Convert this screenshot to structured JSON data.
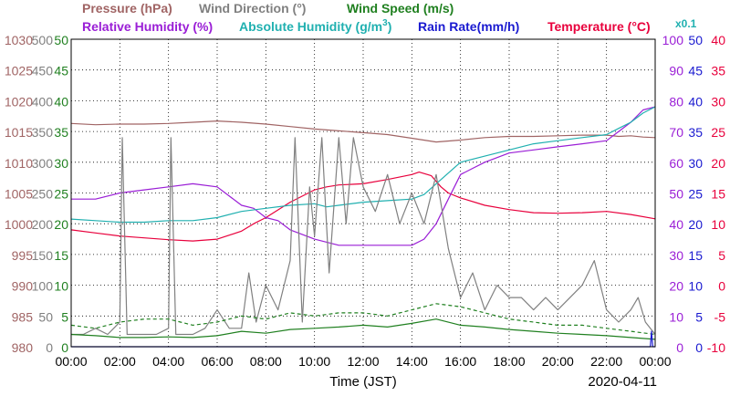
{
  "chart_data": {
    "type": "line",
    "date": "2020-04-11",
    "xlabel": "Time (JST)",
    "x_ticks": [
      "00:00",
      "02:00",
      "04:00",
      "06:00",
      "08:00",
      "10:00",
      "12:00",
      "14:00",
      "16:00",
      "18:00",
      "20:00",
      "22:00",
      "00:00"
    ],
    "xlim": [
      0,
      24
    ],
    "grid": true,
    "axes": {
      "pressure": {
        "label": "Pressure (hPa)",
        "color": "#a06464",
        "ticks": [
          "1030",
          "1025",
          "1020",
          "1015",
          "1010",
          "1005",
          "1000",
          "995",
          "990",
          "985",
          "980"
        ],
        "range": [
          980,
          1030
        ]
      },
      "wind_dir": {
        "label": "Wind Direction (°)",
        "color": "#808080",
        "ticks": [
          "500",
          "450",
          "400",
          "350",
          "300",
          "250",
          "200",
          "150",
          "100",
          "50",
          "0"
        ],
        "range": [
          0,
          500
        ]
      },
      "wind_speed": {
        "label": "Wind Speed (m/s)",
        "color": "#208020",
        "ticks": [
          "50",
          "45",
          "40",
          "35",
          "30",
          "25",
          "20",
          "15",
          "10",
          "5",
          "0"
        ],
        "range": [
          0,
          50
        ]
      },
      "rel_humidity": {
        "label": "Relative Humidity (%)",
        "color": "#9a1ed6",
        "ticks": [
          "100",
          "90",
          "80",
          "70",
          "60",
          "50",
          "40",
          "30",
          "20",
          "10",
          "0"
        ],
        "range": [
          0,
          100
        ]
      },
      "abs_humidity": {
        "label_main": "Absolute Humidity (g/m",
        "label_sup": "3",
        "label_end": ")",
        "multiplier": "x0.1",
        "color": "#20b0b0",
        "range": [
          0,
          10
        ]
      },
      "rain_rate": {
        "label": "Rain Rate(mm/h)",
        "color": "#1a1ad0",
        "ticks": [
          "50",
          "45",
          "40",
          "35",
          "30",
          "25",
          "20",
          "15",
          "10",
          "5",
          "0"
        ],
        "range": [
          0,
          50
        ]
      },
      "temperature": {
        "label": "Temperature (°C)",
        "color": "#e8003c",
        "ticks": [
          "40",
          "35",
          "30",
          "25",
          "20",
          "15",
          "10",
          "5",
          "0",
          "-5",
          "-10"
        ],
        "range": [
          -10,
          40
        ]
      }
    },
    "series": [
      {
        "name": "Pressure (hPa)",
        "axis": "pressure",
        "color": "#a06464",
        "x": [
          0,
          1,
          2,
          3,
          4,
          5,
          6,
          7,
          8,
          9,
          10,
          11,
          12,
          13,
          14,
          15,
          16,
          17,
          18,
          19,
          20,
          21,
          22,
          22.5,
          23,
          23.5,
          24
        ],
        "y": [
          1016.3,
          1016.1,
          1016.2,
          1016.2,
          1016.3,
          1016.5,
          1016.7,
          1016.5,
          1016.2,
          1015.8,
          1015.4,
          1015.1,
          1014.8,
          1014.5,
          1013.9,
          1013.3,
          1013.6,
          1014.0,
          1014.2,
          1014.2,
          1014.3,
          1014.4,
          1014.4,
          1014.2,
          1014.3,
          1014.1,
          1014.0
        ]
      },
      {
        "name": "Temperature (°C)",
        "axis": "temperature",
        "color": "#e8003c",
        "x": [
          0,
          1,
          2,
          3,
          4,
          5,
          6,
          7,
          7.5,
          8,
          9,
          10,
          10.5,
          11,
          12,
          13,
          14,
          14.3,
          14.8,
          15.2,
          15.5,
          16,
          17,
          18,
          19,
          20,
          21,
          22,
          23,
          24
        ],
        "y": [
          9.0,
          8.5,
          8.0,
          7.7,
          7.4,
          7.2,
          7.5,
          8.8,
          10.0,
          11.0,
          13.5,
          15.5,
          16.0,
          16.3,
          16.5,
          17.2,
          18.0,
          18.4,
          17.8,
          16.0,
          15.0,
          14.2,
          13.0,
          12.3,
          11.8,
          11.7,
          11.8,
          12.0,
          11.5,
          10.8
        ]
      },
      {
        "name": "Relative Humidity (%)",
        "axis": "rel_humidity",
        "color": "#9a1ed6",
        "x": [
          0,
          1,
          2,
          3,
          4,
          5,
          6,
          6.5,
          7,
          7.5,
          8,
          8.5,
          9,
          10,
          10.5,
          11,
          11.5,
          12,
          13,
          14,
          14.5,
          15,
          15.5,
          16,
          16.5,
          17,
          18,
          19,
          20,
          21,
          22,
          22.5,
          23,
          23.5,
          24
        ],
        "y": [
          48,
          48,
          50,
          51,
          52,
          53,
          52,
          49,
          46,
          45,
          42,
          41,
          38,
          35,
          34,
          33,
          33,
          33,
          33,
          33,
          35,
          40,
          48,
          56,
          58,
          60,
          63,
          64,
          65,
          66,
          67,
          70,
          73,
          77,
          78
        ]
      },
      {
        "name": "Absolute Humidity (g/m3) x0.1",
        "axis": "abs_humidity",
        "color": "#20b0b0",
        "x": [
          0,
          1,
          2,
          3,
          4,
          5,
          6,
          7,
          8,
          9,
          10,
          10.5,
          11,
          12,
          13,
          14,
          14.5,
          15,
          16,
          17,
          18,
          19,
          20,
          21,
          22,
          22.5,
          23,
          23.5,
          24
        ],
        "y": [
          4.15,
          4.1,
          4.05,
          4.05,
          4.1,
          4.1,
          4.2,
          4.4,
          4.5,
          4.6,
          4.65,
          4.55,
          4.6,
          4.7,
          4.75,
          4.8,
          4.95,
          5.3,
          6.0,
          6.2,
          6.4,
          6.6,
          6.7,
          6.8,
          6.9,
          7.1,
          7.3,
          7.6,
          7.8
        ]
      },
      {
        "name": "Wind Direction (°)",
        "axis": "wind_dir",
        "color": "#808080",
        "x": [
          0,
          0.5,
          1,
          1.5,
          2,
          2.1,
          2.3,
          2.5,
          3,
          3.5,
          4,
          4.1,
          4.3,
          5,
          5.5,
          6,
          6.5,
          7,
          7.3,
          7.6,
          8,
          8.5,
          9,
          9.2,
          9.5,
          9.8,
          10,
          10.3,
          10.6,
          11,
          11.3,
          11.6,
          12,
          12.5,
          13,
          13.5,
          14,
          14.5,
          15,
          15.5,
          16,
          16.5,
          17,
          17.5,
          18,
          18.5,
          19,
          19.5,
          20,
          20.5,
          21,
          21.5,
          22,
          22.5,
          23,
          23.3,
          23.6,
          24
        ],
        "y": [
          20,
          20,
          30,
          20,
          40,
          340,
          20,
          20,
          20,
          20,
          30,
          340,
          20,
          20,
          30,
          60,
          30,
          30,
          120,
          40,
          100,
          60,
          140,
          340,
          40,
          260,
          180,
          340,
          120,
          340,
          200,
          340,
          260,
          220,
          280,
          200,
          250,
          200,
          280,
          160,
          80,
          120,
          60,
          100,
          80,
          80,
          60,
          80,
          60,
          80,
          100,
          140,
          60,
          40,
          60,
          80,
          40,
          20
        ]
      },
      {
        "name": "Wind Speed (m/s)",
        "axis": "wind_speed",
        "color": "#208020",
        "x": [
          0,
          1,
          2,
          3,
          4,
          5,
          6,
          7,
          8,
          9,
          10,
          11,
          12,
          13,
          14,
          15,
          16,
          17,
          18,
          19,
          20,
          21,
          22,
          23,
          24
        ],
        "y": [
          2.0,
          1.8,
          1.5,
          1.5,
          1.6,
          1.5,
          1.8,
          2.5,
          2.2,
          2.8,
          3.0,
          3.2,
          3.5,
          3.2,
          3.8,
          4.5,
          3.5,
          3.2,
          2.8,
          2.5,
          2.2,
          2.0,
          1.8,
          1.5,
          1.2
        ]
      },
      {
        "name": "Wind Speed gust (m/s)",
        "axis": "wind_speed",
        "color": "#208020",
        "dashed": true,
        "x": [
          0,
          1,
          2,
          3,
          4,
          5,
          6,
          7,
          8,
          9,
          10,
          11,
          12,
          13,
          14,
          15,
          16,
          17,
          18,
          19,
          20,
          21,
          22,
          23,
          24
        ],
        "y": [
          3.5,
          3.0,
          4.0,
          4.5,
          4.5,
          3.5,
          4.0,
          5.0,
          4.5,
          5.5,
          5.0,
          5.5,
          5.5,
          5.0,
          6.0,
          7.0,
          6.5,
          5.5,
          4.5,
          4.0,
          3.5,
          3.5,
          3.0,
          2.5,
          2.0
        ]
      },
      {
        "name": "Rain Rate(mm/h)",
        "axis": "rain_rate",
        "color": "#1a1ad0",
        "x": [
          0,
          23.8,
          23.85,
          23.9,
          24
        ],
        "y": [
          0,
          0,
          2.5,
          0,
          0
        ]
      }
    ]
  }
}
